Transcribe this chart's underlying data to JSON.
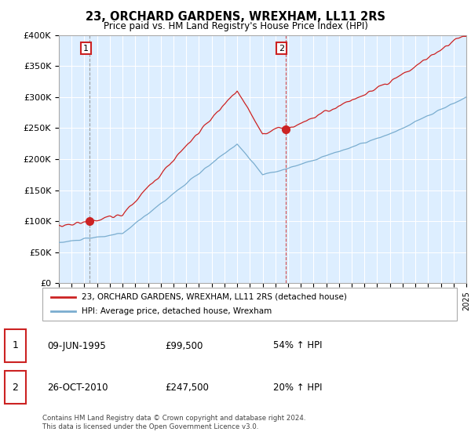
{
  "title": "23, ORCHARD GARDENS, WREXHAM, LL11 2RS",
  "subtitle": "Price paid vs. HM Land Registry's House Price Index (HPI)",
  "legend_line1": "23, ORCHARD GARDENS, WREXHAM, LL11 2RS (detached house)",
  "legend_line2": "HPI: Average price, detached house, Wrexham",
  "sale1_date": "09-JUN-1995",
  "sale1_price": 99500,
  "sale1_hpi": "54% ↑ HPI",
  "sale2_date": "26-OCT-2010",
  "sale2_price": 247500,
  "sale2_hpi": "20% ↑ HPI",
  "footer": "Contains HM Land Registry data © Crown copyright and database right 2024.\nThis data is licensed under the Open Government Licence v3.0.",
  "hpi_color": "#7aadcf",
  "price_color": "#cc2222",
  "sale_marker_color": "#cc2222",
  "sale1_vline_color": "#888888",
  "sale2_vline_color": "#cc2222",
  "bg_fill_color": "#ddeeff",
  "ylim": [
    0,
    400000
  ],
  "yticks": [
    0,
    50000,
    100000,
    150000,
    200000,
    250000,
    300000,
    350000,
    400000
  ],
  "xlim_start": 1993,
  "xlim_end": 2025,
  "sale1_year": 1995.42,
  "sale2_year": 2010.79,
  "sale1_price_y": 99500,
  "sale2_price_y": 247500
}
